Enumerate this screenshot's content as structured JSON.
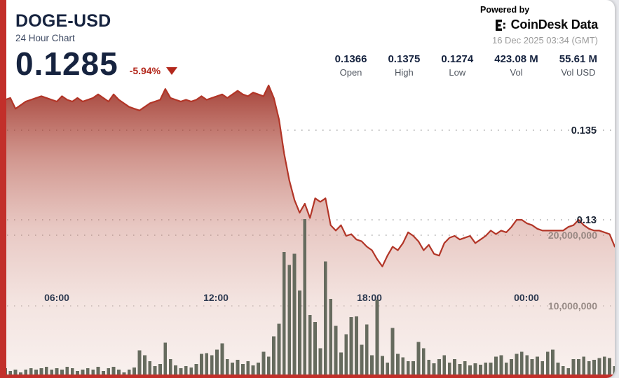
{
  "widget": {
    "header": {
      "symbol": "DOGE-USD",
      "subtitle": "24 Hour Chart",
      "price": "0.1285",
      "change": "-5.94%",
      "change_direction": "down"
    },
    "branding": {
      "powered_by": "Powered by",
      "brand": "CoinDesk Data",
      "timestamp": "16 Dec 2025 03:34 (GMT)"
    },
    "stats": [
      {
        "value": "0.1366",
        "label": "Open"
      },
      {
        "value": "0.1375",
        "label": "High"
      },
      {
        "value": "0.1274",
        "label": "Low"
      },
      {
        "value": "423.08 M",
        "label": "Vol"
      },
      {
        "value": "55.61 M",
        "label": "Vol USD"
      }
    ],
    "accent_red": "#c22f2a"
  },
  "chart_data": {
    "type": "line",
    "title": "DOGE-USD 24 Hour Chart",
    "legend": "none",
    "grid": "dotted horizontal",
    "colors": {
      "line": "#b23527",
      "area_top": "#9b2c21",
      "area_bottom": "#f5e8e4",
      "volume": "#666b5e",
      "grid": "#909090"
    },
    "x_axis": {
      "labels": [
        "06:00",
        "12:00",
        "18:00",
        "00:00"
      ],
      "positions": [
        0.092,
        0.351,
        0.601,
        0.856
      ]
    },
    "price_axis": {
      "side": "right",
      "range": [
        0.1265,
        0.1385
      ],
      "ticks": [
        {
          "label": "0.135",
          "value": 0.135
        },
        {
          "label": "0.13",
          "value": 0.13
        }
      ]
    },
    "volume_axis": {
      "side": "right",
      "range": [
        0,
        25000000
      ],
      "ticks": [
        {
          "label": "20,000,000",
          "value": 20000000
        },
        {
          "label": "10,000,000",
          "value": 10000000
        }
      ]
    },
    "series": [
      {
        "name": "price",
        "type": "area",
        "values": [
          0.1366,
          0.1367,
          0.1368,
          0.1362,
          0.1364,
          0.1366,
          0.1367,
          0.1368,
          0.1369,
          0.1368,
          0.1367,
          0.1366,
          0.1369,
          0.1367,
          0.1366,
          0.1368,
          0.1366,
          0.1367,
          0.1368,
          0.137,
          0.1368,
          0.1366,
          0.137,
          0.1367,
          0.1365,
          0.1363,
          0.1362,
          0.1361,
          0.1363,
          0.1365,
          0.1366,
          0.1367,
          0.1373,
          0.1368,
          0.1367,
          0.1366,
          0.1367,
          0.1366,
          0.1367,
          0.1369,
          0.1367,
          0.1368,
          0.1369,
          0.137,
          0.1368,
          0.137,
          0.1372,
          0.137,
          0.1369,
          0.1371,
          0.137,
          0.1369,
          0.1375,
          0.1368,
          0.1356,
          0.1337,
          0.1322,
          0.1311,
          0.1304,
          0.1309,
          0.1301,
          0.1312,
          0.131,
          0.1312,
          0.1297,
          0.1294,
          0.1297,
          0.1291,
          0.1292,
          0.1289,
          0.1288,
          0.1285,
          0.1283,
          0.1278,
          0.1274,
          0.128,
          0.1285,
          0.1283,
          0.1287,
          0.1293,
          0.1291,
          0.1288,
          0.1283,
          0.1286,
          0.1281,
          0.128,
          0.1287,
          0.129,
          0.1291,
          0.1289,
          0.129,
          0.1291,
          0.1287,
          0.1289,
          0.1291,
          0.1294,
          0.1292,
          0.1294,
          0.1293,
          0.1296,
          0.13,
          0.13,
          0.1298,
          0.1297,
          0.1295,
          0.1294,
          0.1294,
          0.1294,
          0.1294,
          0.1294,
          0.1296,
          0.1297,
          0.13,
          0.1297,
          0.1295,
          0.1294,
          0.1294,
          0.1293,
          0.1292,
          0.1285
        ]
      },
      {
        "name": "volume",
        "type": "bar",
        "unit": "millions",
        "values": [
          2.6,
          1.2,
          0.8,
          1.0,
          0.6,
          1.0,
          1.2,
          1.0,
          1.2,
          1.4,
          1.0,
          1.2,
          1.0,
          1.4,
          1.2,
          0.8,
          1.0,
          1.2,
          1.0,
          1.4,
          0.8,
          1.2,
          1.4,
          1.0,
          0.6,
          1.0,
          1.3,
          3.7,
          3.0,
          2.2,
          1.5,
          1.8,
          4.8,
          2.5,
          1.6,
          1.2,
          1.5,
          1.3,
          1.8,
          3.2,
          3.3,
          3.0,
          3.8,
          4.7,
          2.5,
          2.0,
          2.4,
          1.8,
          2.2,
          1.6,
          2.0,
          3.5,
          2.8,
          5.7,
          7.5,
          17.6,
          15.8,
          17.4,
          12.2,
          22.3,
          8.7,
          7.7,
          4.0,
          16.3,
          11.0,
          7.2,
          3.4,
          6.0,
          8.4,
          8.5,
          4.5,
          7.4,
          3.0,
          10.9,
          2.9,
          2.0,
          6.9,
          3.2,
          2.7,
          2.2,
          2.2,
          4.9,
          4.0,
          2.4,
          1.9,
          2.5,
          3.0,
          2.0,
          2.5,
          1.8,
          2.2,
          1.6,
          1.9,
          1.7,
          2.0,
          2.0,
          2.8,
          3.0,
          2.0,
          2.5,
          3.2,
          3.5,
          3.0,
          2.5,
          2.8,
          2.2,
          3.5,
          3.8,
          2.0,
          1.5,
          1.2,
          2.5,
          2.5,
          2.8,
          2.2,
          2.4,
          2.6,
          2.8,
          2.6,
          1.5
        ]
      }
    ]
  }
}
